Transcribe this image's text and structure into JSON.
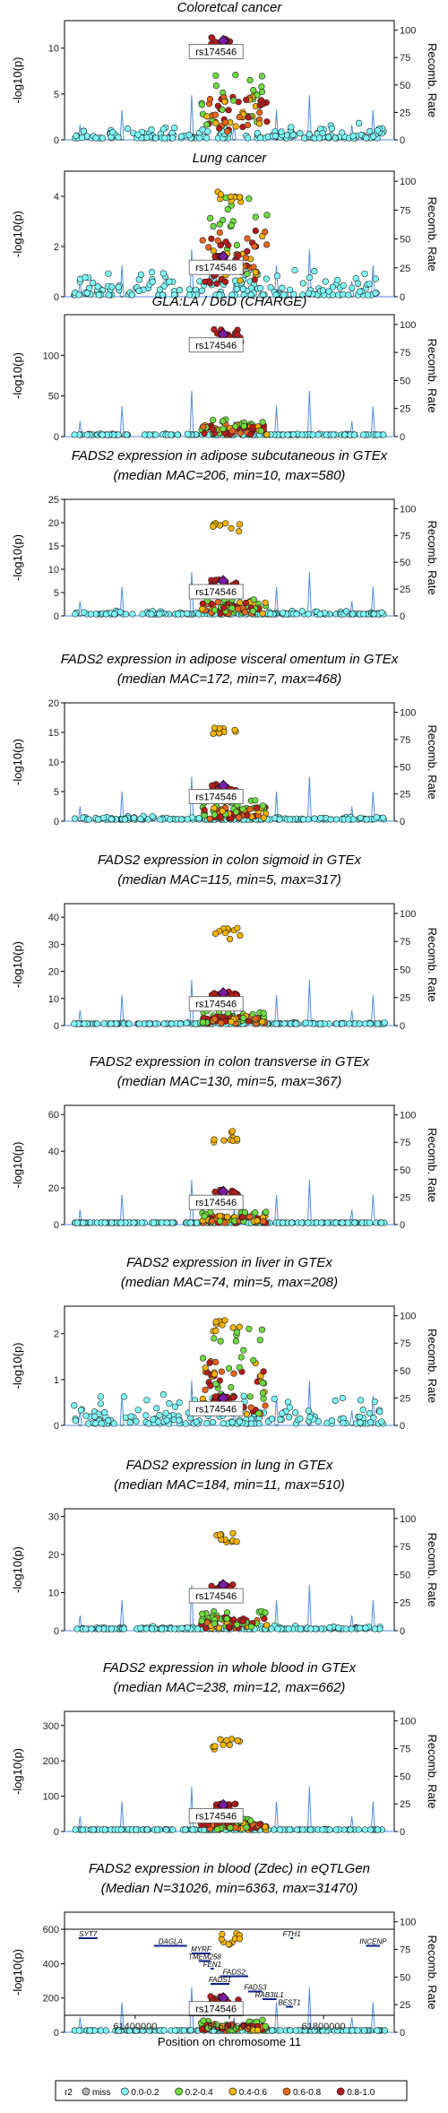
{
  "figure": {
    "y_axis_label": "-log10(p)",
    "y2_axis_label": "Recomb. Rate",
    "x_axis_label": "Position on chromosome 11",
    "lead_snp": "rs174546",
    "x_range": [
      61250000,
      61950000
    ],
    "x_ticks": [
      61400000,
      61600000,
      61800000
    ],
    "y2_ticks": [
      0,
      25,
      50,
      75,
      100
    ]
  },
  "legend": {
    "title": "r2",
    "items": [
      {
        "label": "miss",
        "color": "#b5b5b5"
      },
      {
        "label": "0.0-0.2",
        "color": "#7fffff"
      },
      {
        "label": "0.2-0.4",
        "color": "#6fdc3f"
      },
      {
        "label": "0.4-0.6",
        "color": "#f4b400"
      },
      {
        "label": "0.6-0.8",
        "color": "#e8661c"
      },
      {
        "label": "0.8-1.0",
        "color": "#b81b1b"
      }
    ]
  },
  "chart_data": [
    {
      "type": "scatter",
      "title": "Coloretcal cancer",
      "subtitle": "",
      "ylim": [
        0,
        13
      ],
      "yticks": [
        0,
        5,
        10
      ],
      "lead_y": 10.8,
      "peak": 10.8,
      "background": 1.4,
      "cloud": 4.0
    },
    {
      "type": "scatter",
      "title": "Lung cancer",
      "subtitle": "",
      "ylim": [
        0,
        5
      ],
      "yticks": [
        0,
        2,
        4
      ],
      "lead_y": 1.6,
      "peak": 4.3,
      "background": 0.9,
      "cloud": 2.2
    },
    {
      "type": "scatter",
      "title": "GLA:LA / D6D (CHARGE)",
      "subtitle": "",
      "ylim": [
        0,
        150
      ],
      "yticks": [
        0,
        50,
        100
      ],
      "lead_y": 126,
      "peak": 130,
      "background": 3,
      "cloud": 12
    },
    {
      "type": "scatter",
      "title": "FADS2 expression in adipose subcutaneous in GTEx",
      "subtitle": "(median MAC=206, min=10, max=580)",
      "ylim": [
        0,
        25
      ],
      "yticks": [
        0,
        5,
        10,
        15,
        20,
        25
      ],
      "lead_y": 7.5,
      "peak": 20,
      "background": 0.8,
      "cloud": 2.5
    },
    {
      "type": "scatter",
      "title": "FADS2 expression in adipose visceral omentum in GTEx",
      "subtitle": "(median MAC=172, min=7, max=468)",
      "ylim": [
        0,
        20
      ],
      "yticks": [
        0,
        5,
        10,
        15,
        20
      ],
      "lead_y": 6.0,
      "peak": 16,
      "background": 0.7,
      "cloud": 2.0
    },
    {
      "type": "scatter",
      "title": "FADS2 expression in colon sigmoid in GTEx",
      "subtitle": "(median MAC=115, min=5, max=317)",
      "ylim": [
        0,
        45
      ],
      "yticks": [
        0,
        10,
        20,
        30,
        40
      ],
      "lead_y": 12,
      "peak": 36,
      "background": 1,
      "cloud": 3
    },
    {
      "type": "scatter",
      "title": "FADS2 expression in colon transverse in GTEx",
      "subtitle": "(median MAC=130, min=5, max=367)",
      "ylim": [
        0,
        65
      ],
      "yticks": [
        0,
        20,
        40,
        60
      ],
      "lead_y": 18,
      "peak": 51,
      "background": 1,
      "cloud": 4
    },
    {
      "type": "scatter",
      "title": "FADS2 expression in liver in GTEx",
      "subtitle": "(median MAC=74, min=5, max=208)",
      "ylim": [
        0,
        2.6
      ],
      "yticks": [
        0,
        1,
        2
      ],
      "lead_y": 0.6,
      "peak": 2.3,
      "background": 0.5,
      "cloud": 1.2
    },
    {
      "type": "scatter",
      "title": "FADS2 expression in lung in GTEx",
      "subtitle": "(median MAC=184, min=11, max=510)",
      "ylim": [
        0,
        32
      ],
      "yticks": [
        0,
        10,
        20,
        30
      ],
      "lead_y": 12,
      "peak": 26,
      "background": 1,
      "cloud": 3
    },
    {
      "type": "scatter",
      "title": "FADS2 expression in whole blood in GTEx",
      "subtitle": "(median MAC=238, min=12, max=662)",
      "ylim": [
        0,
        340
      ],
      "yticks": [
        0,
        100,
        200,
        300
      ],
      "lead_y": 75,
      "peak": 262,
      "background": 5,
      "cloud": 20
    },
    {
      "type": "scatter",
      "title": "FADS2 expression in blood (Zdec) in eQTLGen",
      "subtitle": "(Median N=31026, min=6363, max=31470)",
      "ylim": [
        0,
        700
      ],
      "yticks": [
        0,
        200,
        400,
        600
      ],
      "lead_y": 200,
      "peak": 580,
      "background": 10,
      "cloud": 40
    }
  ],
  "genes": [
    {
      "name": "SYT7",
      "start": 61280000,
      "end": 61320000,
      "row": 0
    },
    {
      "name": "DAGLA",
      "start": 61440000,
      "end": 61510000,
      "row": 1
    },
    {
      "name": "MYRF",
      "start": 61520000,
      "end": 61560000,
      "row": 2
    },
    {
      "name": "TMEM258",
      "start": 61535000,
      "end": 61560000,
      "row": 3
    },
    {
      "name": "FEN1",
      "start": 61560000,
      "end": 61567000,
      "row": 4
    },
    {
      "name": "FADS2",
      "start": 61580000,
      "end": 61640000,
      "row": 5
    },
    {
      "name": "FADS1",
      "start": 61560000,
      "end": 61600000,
      "row": 6
    },
    {
      "name": "FADS3",
      "start": 61640000,
      "end": 61670000,
      "row": 7
    },
    {
      "name": "RAB3IL1",
      "start": 61670000,
      "end": 61700000,
      "row": 8
    },
    {
      "name": "BEST1",
      "start": 61720000,
      "end": 61735000,
      "row": 9
    },
    {
      "name": "FTH1",
      "start": 61730000,
      "end": 61735000,
      "row": 0
    },
    {
      "name": "INCENP",
      "start": 61890000,
      "end": 61920000,
      "row": 1
    }
  ]
}
